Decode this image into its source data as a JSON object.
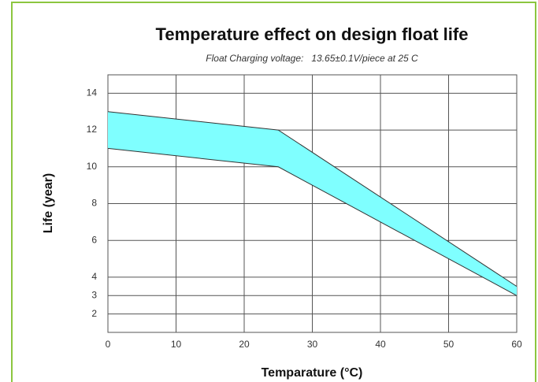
{
  "chart_data": {
    "type": "range_area",
    "title": "Temperature effect on design float life",
    "subtitle": "Float Charging voltage:   13.65±0.1V/piece at 25 C",
    "x_label": "Temparature (°C)",
    "y_label": "Life (year)",
    "x": [
      0,
      25,
      60
    ],
    "series": [
      {
        "values": [
          11,
          10,
          3
        ]
      },
      {
        "values": [
          13,
          12,
          3.5
        ]
      }
    ],
    "color": "#7fffff",
    "line_color": "#333333",
    "xlim": [
      0,
      60
    ],
    "xticks": [
      0,
      10,
      20,
      30,
      40,
      50,
      60
    ],
    "ylim": [
      1,
      15
    ],
    "yticks": [
      2,
      3,
      4,
      6,
      8,
      10,
      12,
      14
    ],
    "grid": true
  }
}
